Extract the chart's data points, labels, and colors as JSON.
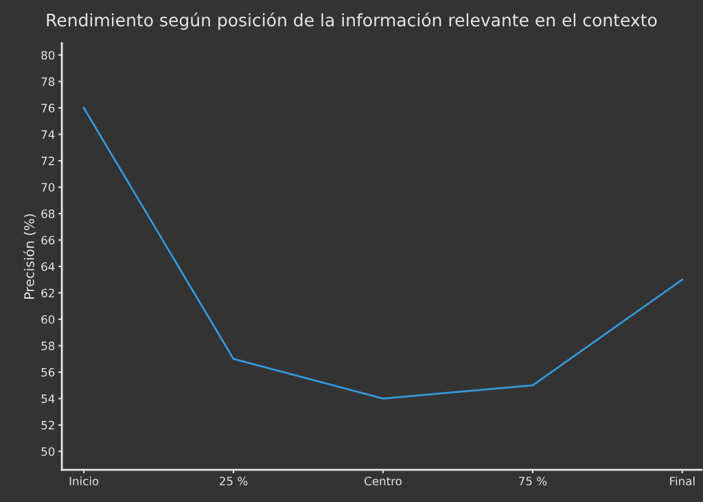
{
  "chart_data": {
    "type": "line",
    "title": "Rendimiento según posición de la información relevante en el contexto",
    "ylabel": "Precisión (%)",
    "categories": [
      "Inicio",
      "25 %",
      "Centro",
      "75 %",
      "Final"
    ],
    "series": [
      {
        "color": "#3498db",
        "values": [
          76,
          57,
          54,
          55,
          63
        ]
      }
    ],
    "ylim": [
      48.6,
      80.9
    ],
    "yticks": [
      50,
      52,
      54,
      56,
      58,
      60,
      62,
      64,
      66,
      68,
      70,
      72,
      74,
      76,
      78,
      80
    ],
    "grid": false,
    "marker": "none",
    "line_style": "solid"
  }
}
